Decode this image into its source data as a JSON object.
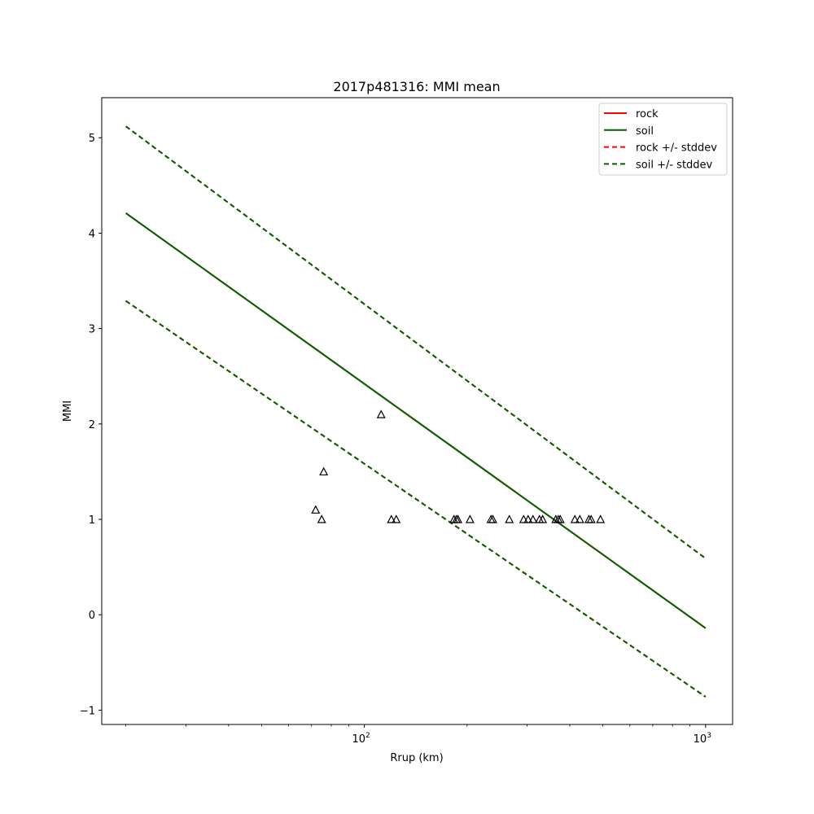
{
  "chart_data": {
    "type": "line",
    "title": "2017p481316: MMI mean",
    "xlabel": "Rrup (km)",
    "ylabel": "MMI",
    "xscale": "log",
    "xlim": [
      17,
      1200
    ],
    "ylim": [
      -1.15,
      5.42
    ],
    "x_ticks": [
      {
        "value": 100,
        "base": "10",
        "exp": "2"
      },
      {
        "value": 1000,
        "base": "10",
        "exp": "3"
      }
    ],
    "y_ticks": [
      -1,
      0,
      1,
      2,
      3,
      4,
      5
    ],
    "grid": false,
    "legend_position": "top-right",
    "series": [
      {
        "name": "rock",
        "style": "solid",
        "color": "#ff0000",
        "x": [
          20,
          1000
        ],
        "y": [
          4.21,
          -0.14
        ]
      },
      {
        "name": "soil",
        "style": "solid",
        "color": "#006400",
        "x": [
          20,
          1000
        ],
        "y": [
          4.21,
          -0.14
        ]
      },
      {
        "name": "rock +/- stddev",
        "style": "dashed",
        "color": "#ff0000",
        "x": [
          20,
          1000
        ],
        "y_upper": [
          5.12,
          0.59
        ],
        "y_lower": [
          3.29,
          -0.86
        ]
      },
      {
        "name": "soil +/- stddev",
        "style": "dashed",
        "color": "#006400",
        "x": [
          20,
          1000
        ],
        "y_upper": [
          5.12,
          0.59
        ],
        "y_lower": [
          3.29,
          -0.86
        ]
      }
    ],
    "observations": {
      "marker": "triangle",
      "x": [
        72,
        75,
        76,
        112,
        120,
        124,
        183,
        186,
        188,
        204,
        235,
        238,
        266,
        293,
        302,
        312,
        326,
        333,
        364,
        370,
        375,
        414,
        428,
        455,
        462,
        492
      ],
      "y": [
        1.1,
        1.0,
        1.5,
        2.1,
        1.0,
        1.0,
        1.0,
        1.0,
        1.0,
        1.0,
        1.0,
        1.0,
        1.0,
        1.0,
        1.0,
        1.0,
        1.0,
        1.0,
        1.0,
        1.0,
        1.0,
        1.0,
        1.0,
        1.0,
        1.0,
        1.0
      ]
    }
  }
}
